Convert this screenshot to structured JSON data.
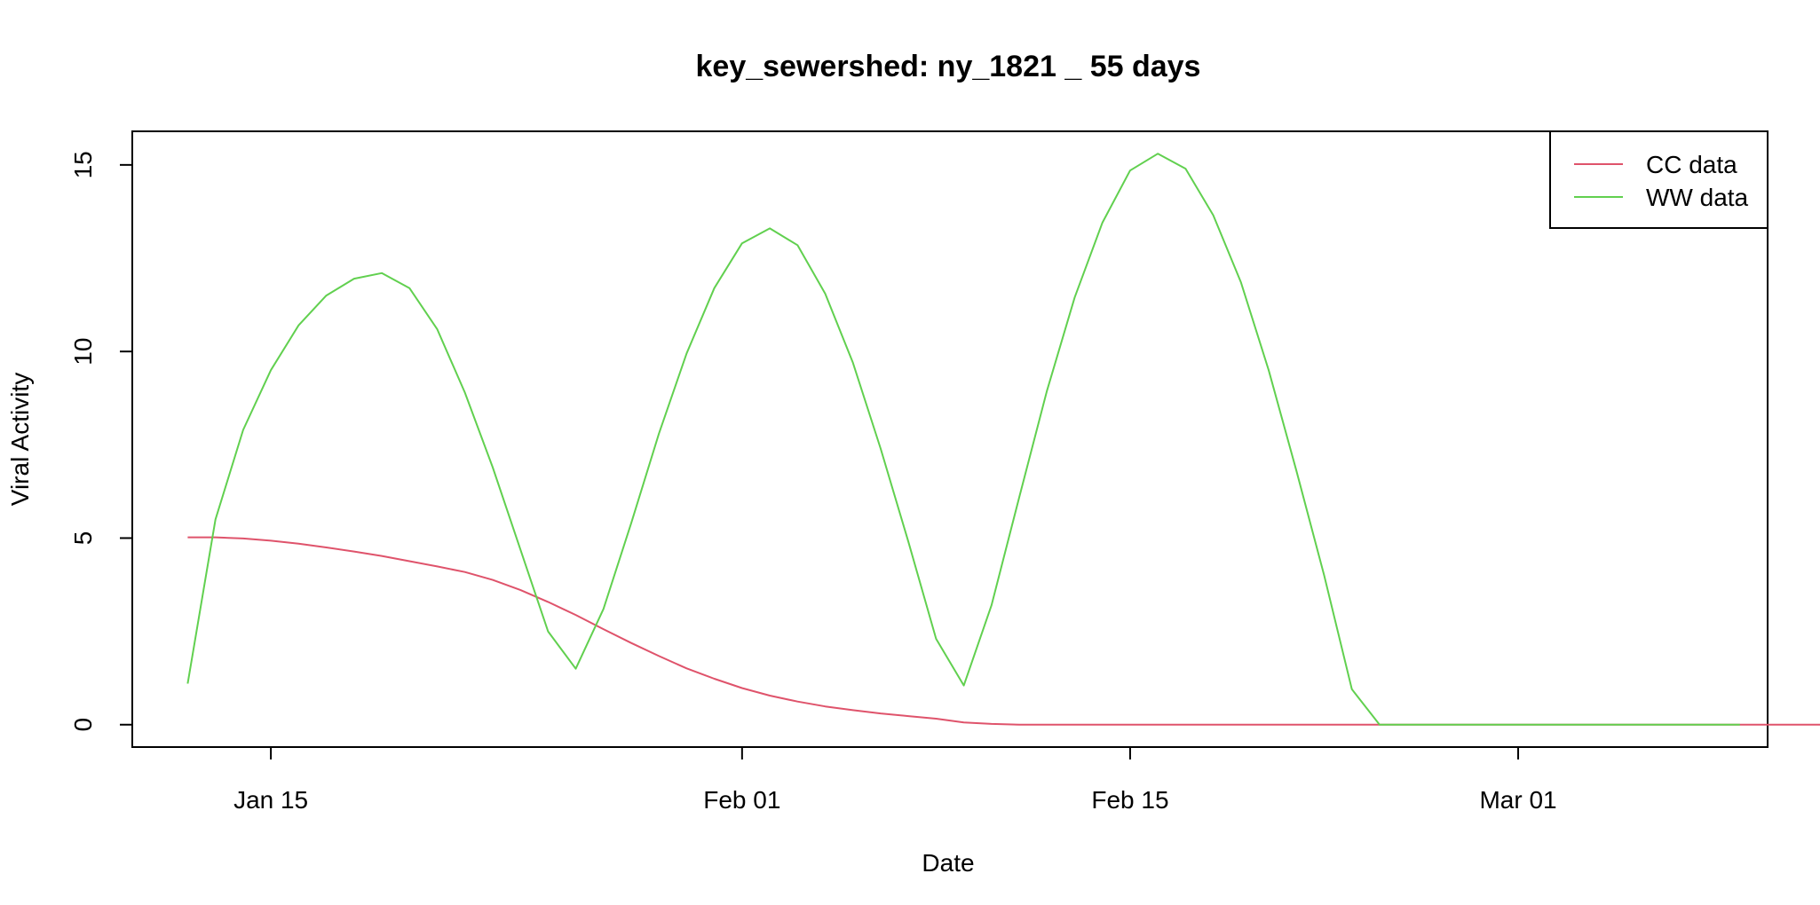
{
  "chart_data": {
    "type": "line",
    "title": "key_sewershed:  ny_1821 _ 55  days",
    "xlabel": "Date",
    "ylabel": "Viral Activity",
    "xlim": [
      "2022-01-10",
      "2022-03-10"
    ],
    "ylim": [
      -0.6,
      15.9
    ],
    "yticks": [
      0,
      5,
      10,
      15
    ],
    "ytick_labels": [
      "0",
      "5",
      "10",
      "15"
    ],
    "xticks": [
      "2022-01-15",
      "2022-02-01",
      "2022-02-15",
      "2022-03-01"
    ],
    "xtick_labels": [
      "Jan 15",
      "Feb 01",
      "Feb 15",
      "Mar 01"
    ],
    "grid": false,
    "legend_position": "top-right",
    "start_date": "2022-01-12",
    "series": [
      {
        "name": "CC data",
        "color": "#DF536B",
        "values": [
          5.02,
          5.02,
          4.99,
          4.93,
          4.85,
          4.75,
          4.64,
          4.52,
          4.38,
          4.24,
          4.09,
          3.88,
          3.61,
          3.29,
          2.94,
          2.56,
          2.19,
          1.84,
          1.51,
          1.23,
          0.98,
          0.78,
          0.62,
          0.49,
          0.39,
          0.3,
          0.23,
          0.16,
          0.06,
          0.02,
          0,
          0,
          0,
          0,
          0,
          0,
          0,
          0,
          0,
          0,
          0,
          0,
          0,
          0,
          0,
          0,
          0,
          0,
          0,
          0,
          0,
          0,
          0,
          0,
          0,
          0,
          0,
          0,
          0,
          0,
          0,
          0,
          0,
          0.01,
          0.08,
          0.16,
          0.25,
          0.34,
          0.43,
          0.52,
          0.62,
          0.7
        ]
      },
      {
        "name": "WW data",
        "color": "#61D04F",
        "values": [
          1.1,
          5.5,
          7.9,
          9.5,
          10.7,
          11.5,
          11.95,
          12.1,
          11.7,
          10.6,
          8.9,
          6.9,
          4.7,
          2.5,
          1.5,
          3.1,
          5.4,
          7.8,
          9.95,
          11.7,
          12.9,
          13.3,
          12.85,
          11.55,
          9.7,
          7.4,
          4.9,
          2.3,
          1.05,
          3.2,
          6.1,
          8.95,
          11.45,
          13.45,
          14.85,
          15.3,
          14.9,
          13.65,
          11.85,
          9.5,
          6.8,
          4.0,
          0.95,
          0,
          0,
          0,
          0,
          0,
          0,
          0,
          0,
          0,
          0,
          0,
          0,
          0,
          0
        ]
      }
    ]
  }
}
